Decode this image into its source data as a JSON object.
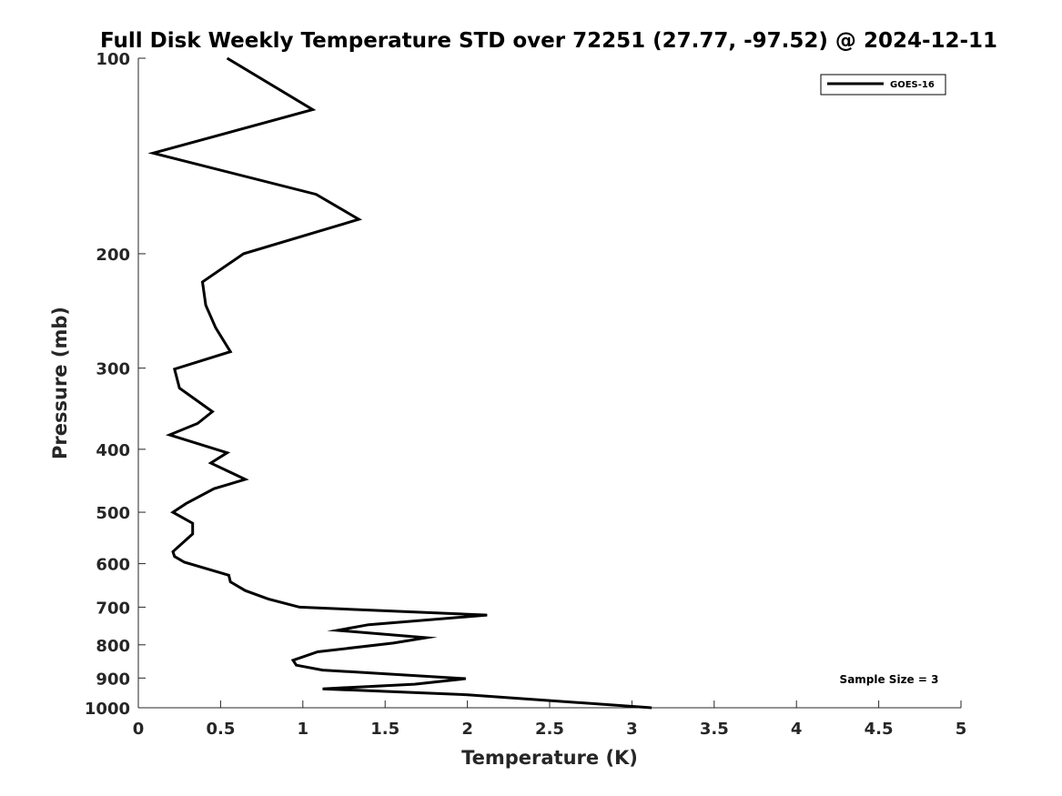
{
  "chart_data": {
    "type": "line",
    "title": "Full Disk Weekly Temperature STD over 72251 (27.77, -97.52) @ 2024-12-11",
    "xlabel": "Temperature (K)",
    "ylabel": "Pressure (mb)",
    "xlim": [
      0,
      5
    ],
    "ylim": [
      100,
      1000
    ],
    "yscale": "log",
    "y_reversed": true,
    "grid": false,
    "legend_position": "top-right",
    "xticks": [
      0,
      0.5,
      1,
      1.5,
      2,
      2.5,
      3,
      3.5,
      4,
      4.5,
      5
    ],
    "xtick_labels": [
      "0",
      "0.5",
      "1",
      "1.5",
      "2",
      "2.5",
      "3",
      "3.5",
      "4",
      "4.5",
      "5"
    ],
    "yticks": [
      100,
      200,
      300,
      400,
      500,
      600,
      700,
      800,
      900,
      1000
    ],
    "ytick_labels": [
      "100",
      "200",
      "300",
      "400",
      "500",
      "600",
      "700",
      "800",
      "900",
      "1000"
    ],
    "series": [
      {
        "name": "GOES-16",
        "color": "#000000",
        "x": [
          0.54,
          1.06,
          0.09,
          1.08,
          1.34,
          0.64,
          0.39,
          0.41,
          0.47,
          0.56,
          0.22,
          0.25,
          0.45,
          0.36,
          0.19,
          0.54,
          0.44,
          0.65,
          0.46,
          0.29,
          0.21,
          0.33,
          0.33,
          0.21,
          0.22,
          0.28,
          0.55,
          0.56,
          0.65,
          0.79,
          0.98,
          2.12,
          1.4,
          1.21,
          1.75,
          1.55,
          1.09,
          0.94,
          0.96,
          1.12,
          1.99,
          1.68,
          1.12,
          2.0,
          2.5,
          3.12
        ],
        "y": [
          100,
          120,
          140,
          162,
          177,
          200,
          221,
          240,
          260,
          283,
          301,
          322,
          350,
          365,
          380,
          405,
          420,
          445,
          460,
          485,
          500,
          520,
          540,
          575,
          585,
          597,
          625,
          640,
          660,
          680,
          700,
          720,
          745,
          760,
          780,
          795,
          820,
          845,
          860,
          875,
          902,
          920,
          935,
          955,
          975,
          1000
        ]
      }
    ],
    "annotations": [
      {
        "text": "Sample Size = 3",
        "x": 4.5,
        "y": 900
      }
    ]
  }
}
